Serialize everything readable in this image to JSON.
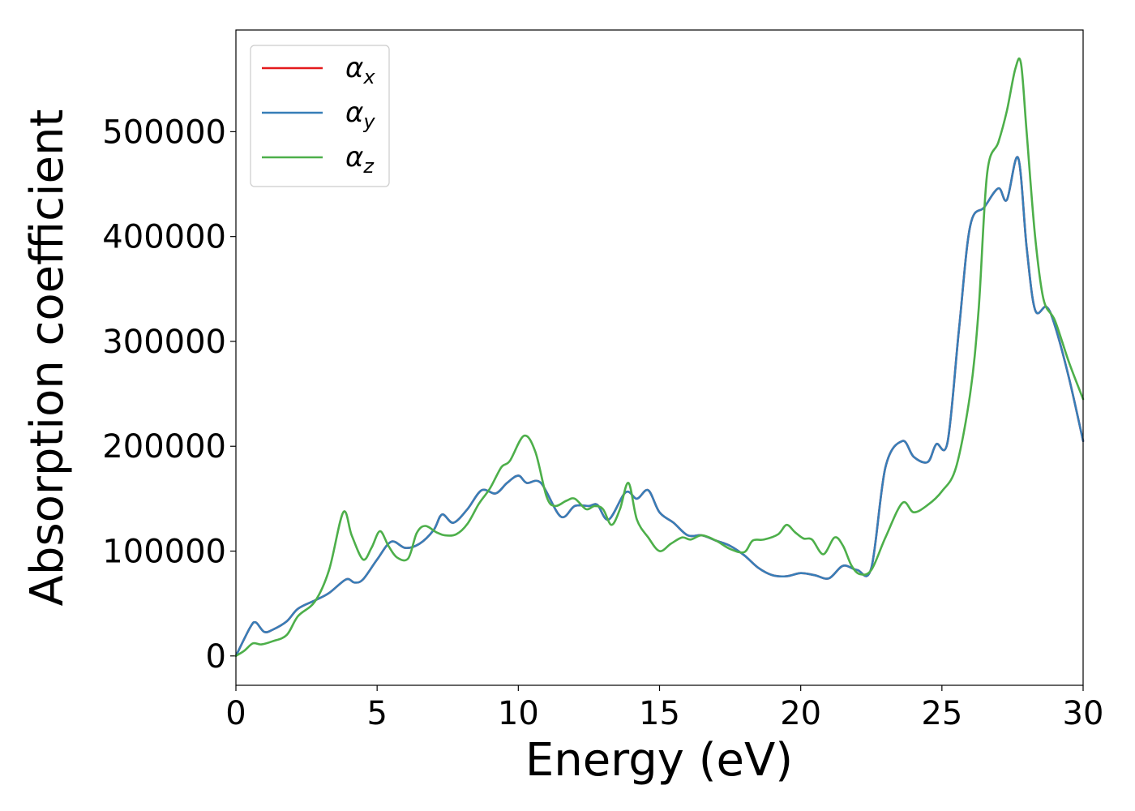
{
  "chart_data": {
    "type": "line",
    "title": "",
    "xlabel": "Energy (eV)",
    "ylabel": "Absorption coefficient",
    "xlim": [
      0,
      30
    ],
    "ylim": [
      -28000,
      597000
    ],
    "xticks": [
      0,
      5,
      10,
      15,
      20,
      25,
      30
    ],
    "xtick_labels": [
      "0",
      "5",
      "10",
      "15",
      "20",
      "25",
      "30"
    ],
    "yticks": [
      0,
      100000,
      200000,
      300000,
      400000,
      500000
    ],
    "ytick_labels": [
      "0",
      "100000",
      "200000",
      "300000",
      "400000",
      "500000"
    ],
    "grid": false,
    "legend": {
      "position": "top-left"
    },
    "series": [
      {
        "name": "α",
        "subscript": "x",
        "color": "#e41a1c",
        "x": [
          0,
          0.5,
          0.7,
          1.0,
          1.3,
          1.8,
          2.2,
          2.8,
          3.3,
          3.9,
          4.2,
          4.5,
          5.0,
          5.5,
          6.0,
          6.5,
          7.0,
          7.3,
          7.7,
          8.2,
          8.7,
          9.2,
          9.6,
          10.0,
          10.3,
          10.8,
          11.5,
          12.0,
          12.5,
          12.8,
          13.2,
          13.8,
          14.2,
          14.6,
          15.0,
          15.5,
          16.0,
          16.5,
          17.0,
          17.5,
          18.0,
          18.5,
          19.0,
          19.5,
          20.0,
          20.5,
          21.0,
          21.5,
          22.0,
          22.5,
          23.0,
          23.6,
          24.0,
          24.5,
          24.8,
          25.2,
          25.6,
          26.0,
          26.5,
          27.0,
          27.3,
          27.7,
          28.0,
          28.3,
          28.7,
          29.0,
          29.5,
          30.0
        ],
        "y": [
          0,
          27000,
          32000,
          23000,
          25000,
          33000,
          45000,
          53000,
          60000,
          73000,
          70000,
          73000,
          92000,
          109000,
          103000,
          107000,
          120000,
          135000,
          127000,
          140000,
          158000,
          155000,
          165000,
          172000,
          165000,
          165000,
          133000,
          143000,
          143000,
          144000,
          130000,
          156000,
          150000,
          158000,
          137000,
          127000,
          115000,
          115000,
          110000,
          105000,
          96000,
          84000,
          77000,
          76000,
          79000,
          77000,
          74000,
          86000,
          82000,
          84000,
          180000,
          205000,
          190000,
          185000,
          202000,
          204000,
          310000,
          410000,
          428000,
          446000,
          435000,
          475000,
          390000,
          330000,
          333000,
          315000,
          265000,
          205000
        ]
      },
      {
        "name": "α",
        "subscript": "y",
        "color": "#377eb8",
        "x": [
          0,
          0.5,
          0.7,
          1.0,
          1.3,
          1.8,
          2.2,
          2.8,
          3.3,
          3.9,
          4.2,
          4.5,
          5.0,
          5.5,
          6.0,
          6.5,
          7.0,
          7.3,
          7.7,
          8.2,
          8.7,
          9.2,
          9.6,
          10.0,
          10.3,
          10.8,
          11.5,
          12.0,
          12.5,
          12.8,
          13.2,
          13.8,
          14.2,
          14.6,
          15.0,
          15.5,
          16.0,
          16.5,
          17.0,
          17.5,
          18.0,
          18.5,
          19.0,
          19.5,
          20.0,
          20.5,
          21.0,
          21.5,
          22.0,
          22.5,
          23.0,
          23.6,
          24.0,
          24.5,
          24.8,
          25.2,
          25.6,
          26.0,
          26.5,
          27.0,
          27.3,
          27.7,
          28.0,
          28.3,
          28.7,
          29.0,
          29.5,
          30.0
        ],
        "y": [
          0,
          27000,
          32000,
          23000,
          25000,
          33000,
          45000,
          53000,
          60000,
          73000,
          70000,
          73000,
          92000,
          109000,
          103000,
          107000,
          120000,
          135000,
          127000,
          140000,
          158000,
          155000,
          165000,
          172000,
          165000,
          165000,
          133000,
          143000,
          143000,
          144000,
          130000,
          156000,
          150000,
          158000,
          137000,
          127000,
          115000,
          115000,
          110000,
          105000,
          96000,
          84000,
          77000,
          76000,
          79000,
          77000,
          74000,
          86000,
          82000,
          84000,
          180000,
          205000,
          190000,
          185000,
          202000,
          204000,
          310000,
          410000,
          428000,
          446000,
          435000,
          475000,
          390000,
          330000,
          333000,
          315000,
          265000,
          205000
        ]
      },
      {
        "name": "α",
        "subscript": "z",
        "color": "#4daf4a",
        "x": [
          0,
          0.3,
          0.6,
          0.9,
          1.3,
          1.8,
          2.2,
          2.8,
          3.3,
          3.8,
          4.1,
          4.5,
          4.8,
          5.1,
          5.4,
          5.7,
          6.1,
          6.4,
          6.7,
          7.1,
          7.4,
          7.8,
          8.2,
          8.6,
          9.0,
          9.4,
          9.7,
          10.2,
          10.6,
          11.0,
          11.3,
          11.7,
          12.0,
          12.4,
          12.7,
          13.0,
          13.3,
          13.6,
          13.9,
          14.2,
          14.6,
          15.0,
          15.4,
          15.8,
          16.1,
          16.5,
          17.0,
          17.5,
          18.0,
          18.3,
          18.7,
          19.2,
          19.5,
          19.8,
          20.1,
          20.4,
          20.8,
          21.2,
          21.5,
          21.8,
          22.1,
          22.5,
          23.0,
          23.6,
          24.0,
          24.5,
          25.0,
          25.5,
          26.0,
          26.3,
          26.6,
          27.0,
          27.3,
          27.6,
          27.8,
          28.0,
          28.3,
          28.6,
          29.0,
          29.5,
          30.0
        ],
        "y": [
          0,
          5000,
          12000,
          11000,
          14000,
          20000,
          38000,
          52000,
          82000,
          137000,
          115000,
          92000,
          103000,
          119000,
          105000,
          94000,
          93000,
          117000,
          124000,
          118000,
          115000,
          116000,
          126000,
          145000,
          160000,
          180000,
          186000,
          210000,
          195000,
          152000,
          143000,
          148000,
          150000,
          140000,
          143000,
          140000,
          125000,
          140000,
          165000,
          130000,
          113000,
          100000,
          107000,
          113000,
          111000,
          115000,
          110000,
          102000,
          99000,
          110000,
          111000,
          116000,
          125000,
          118000,
          112000,
          111000,
          97000,
          113000,
          105000,
          86000,
          78000,
          82000,
          113000,
          146000,
          137000,
          144000,
          157000,
          180000,
          250000,
          330000,
          460000,
          490000,
          520000,
          560000,
          565000,
          500000,
          400000,
          340000,
          320000,
          280000,
          245000
        ]
      }
    ]
  }
}
